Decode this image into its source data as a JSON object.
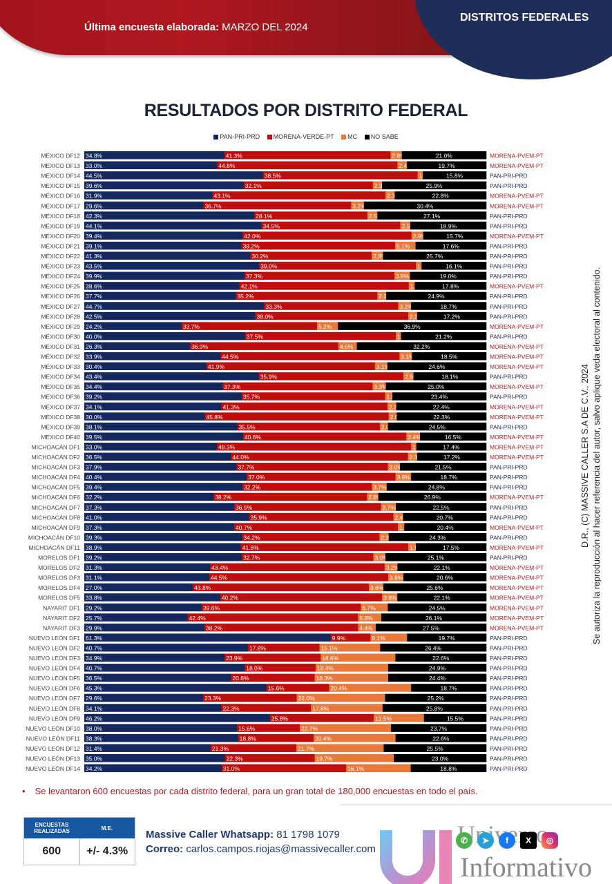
{
  "header": {
    "subtitle_label": "Última encuesta elaborada:",
    "subtitle_date": "MARZO  DEL 2024",
    "section_title": "DISTRITOS FEDERALES"
  },
  "colors": {
    "pan": "#14285e",
    "morena": "#c00d0d",
    "mc": "#e8793a",
    "nosabe": "#000000",
    "winner_pan": "#1c2a4f",
    "winner_morena": "#b01820"
  },
  "chart_data": {
    "type": "bar",
    "orientation": "horizontal-stacked-100",
    "title": "RESULTADOS POR DISTRITO FEDERAL",
    "legend": [
      "PAN-PRI-PRD",
      "MORENA-VERDE-PT",
      "MC",
      "NO SABE"
    ],
    "legend_position": "top",
    "series_keys": [
      "pan",
      "morena",
      "mc",
      "nosabe"
    ],
    "rows": [
      {
        "district": "MÉXICO DF12",
        "values": [
          34.8,
          41.3,
          2.8,
          21.0
        ],
        "winner": "MORENA-PVEM-PT"
      },
      {
        "district": "MÉXICO DF13",
        "values": [
          33.0,
          44.8,
          2.4,
          19.7
        ],
        "winner": "MORENA-PVEM-PT"
      },
      {
        "district": "MÉXICO DF14",
        "values": [
          44.5,
          38.5,
          1.3,
          15.8
        ],
        "winner": "PAN-PRI-PRD"
      },
      {
        "district": "MÉXICO DF15",
        "values": [
          39.6,
          32.1,
          2.3,
          25.9
        ],
        "winner": "PAN-PRI-PRD"
      },
      {
        "district": "MÉXICO DF16",
        "values": [
          31.9,
          43.1,
          2.3,
          22.8
        ],
        "winner": "MORENA-PVEM-PT"
      },
      {
        "district": "MÉXICO DF17",
        "values": [
          29.6,
          36.7,
          3.2,
          30.4
        ],
        "winner": "MORENA-PVEM-PT"
      },
      {
        "district": "MÉXICO DF18",
        "values": [
          42.3,
          28.1,
          2.5,
          27.1
        ],
        "winner": "PAN-PRI-PRD"
      },
      {
        "district": "MÉXICO DF19",
        "values": [
          44.1,
          34.5,
          2.5,
          18.9
        ],
        "winner": "PAN-PRI-PRD"
      },
      {
        "district": "MÉXICO DF20",
        "values": [
          39.4,
          42.0,
          2.9,
          15.7
        ],
        "winner": "MORENA-PVEM-PT"
      },
      {
        "district": "MÉXICO DF21",
        "values": [
          39.1,
          38.2,
          5.1,
          17.6
        ],
        "winner": "PAN-PRI-PRD"
      },
      {
        "district": "MÉXICO DF22",
        "values": [
          41.3,
          30.2,
          2.8,
          25.7
        ],
        "winner": "PAN-PRI-PRD"
      },
      {
        "district": "MÉXICO DF23",
        "values": [
          43.5,
          39.0,
          1.4,
          16.1
        ],
        "winner": "PAN-PRI-PRD"
      },
      {
        "district": "MÉXICO DF24",
        "values": [
          39.9,
          37.3,
          3.9,
          19.0
        ],
        "winner": "PAN-PRI-PRD"
      },
      {
        "district": "MÉXICO DF25",
        "values": [
          38.6,
          42.1,
          1.5,
          17.8
        ],
        "winner": "MORENA-PVEM-PT"
      },
      {
        "district": "MÉXICO DF26",
        "values": [
          37.7,
          35.2,
          2.2,
          24.9
        ],
        "winner": "PAN-PRI-PRD"
      },
      {
        "district": "MÉXICO DF27",
        "values": [
          44.7,
          33.3,
          3.2,
          18.7
        ],
        "winner": "PAN-PRI-PRD"
      },
      {
        "district": "MÉXICO DF28",
        "values": [
          42.5,
          38.0,
          2.2,
          17.2
        ],
        "winner": "PAN-PRI-PRD"
      },
      {
        "district": "MÉXICO DF29",
        "values": [
          24.2,
          33.7,
          5.2,
          36.9
        ],
        "winner": "MORENA-PVEM-PT"
      },
      {
        "district": "MÉXICO DF30",
        "values": [
          40.0,
          37.5,
          1.3,
          21.2
        ],
        "winner": "PAN-PRI-PRD"
      },
      {
        "district": "MÉXICO DF31",
        "values": [
          26.3,
          36.9,
          4.6,
          32.2
        ],
        "winner": "MORENA-PVEM-PT"
      },
      {
        "district": "MÉXICO DF32",
        "values": [
          33.9,
          44.5,
          3.1,
          18.5
        ],
        "winner": "MORENA-PVEM-PT"
      },
      {
        "district": "MÉXICO DF33",
        "values": [
          30.4,
          41.9,
          3.1,
          24.6
        ],
        "winner": "MORENA-PVEM-PT"
      },
      {
        "district": "MÉXICO DF34",
        "values": [
          43.4,
          35.9,
          2.5,
          18.1
        ],
        "winner": "PAN-PRI-PRD"
      },
      {
        "district": "MÉXICO DF35",
        "values": [
          34.4,
          37.3,
          3.3,
          25.0
        ],
        "winner": "MORENA-PVEM-PT"
      },
      {
        "district": "MÉXICO DF36",
        "values": [
          39.2,
          35.7,
          1.8,
          23.4
        ],
        "winner": "PAN-PRI-PRD"
      },
      {
        "district": "MÉXICO DF37",
        "values": [
          34.1,
          41.3,
          2.2,
          22.4
        ],
        "winner": "MORENA-PVEM-PT"
      },
      {
        "district": "MÉXICO DF38",
        "values": [
          30.0,
          45.8,
          2.0,
          22.3
        ],
        "winner": "MORENA-PVEM-PT"
      },
      {
        "district": "MÉXICO DF39",
        "values": [
          38.1,
          35.5,
          2.0,
          24.5
        ],
        "winner": "PAN-PRI-PRD"
      },
      {
        "district": "MÉXICO DF40",
        "values": [
          39.5,
          40.6,
          3.4,
          16.5
        ],
        "winner": "MORENA-PVEM-PT"
      },
      {
        "district": "MICHOACÁN DF1",
        "values": [
          33.0,
          48.3,
          1.3,
          17.4
        ],
        "winner": "MORENA-PVEM-PT"
      },
      {
        "district": "MICHOACÁN DF2",
        "values": [
          36.5,
          44.0,
          2.3,
          17.2
        ],
        "winner": "MORENA-PVEM-PT"
      },
      {
        "district": "MICHOACÁN DF3",
        "values": [
          37.9,
          37.7,
          3.0,
          21.5
        ],
        "winner": "PAN-PRI-PRD"
      },
      {
        "district": "MICHOACÁN DF4",
        "values": [
          40.4,
          37.0,
          3.9,
          18.7
        ],
        "winner": "PAN-PRI-PRD"
      },
      {
        "district": "MICHOACÁN DF5",
        "values": [
          39.4,
          32.2,
          3.7,
          24.8
        ],
        "winner": "PAN-PRI-PRD"
      },
      {
        "district": "MICHOACÁN DF6",
        "values": [
          32.2,
          38.2,
          2.8,
          26.9
        ],
        "winner": "MORENA-PVEM-PT"
      },
      {
        "district": "MICHOACÁN DF7",
        "values": [
          37.3,
          36.5,
          3.7,
          22.5
        ],
        "winner": "PAN-PRI-PRD"
      },
      {
        "district": "MICHOACÁN DF8",
        "values": [
          41.0,
          35.9,
          2.4,
          20.7
        ],
        "winner": "PAN-PRI-PRD"
      },
      {
        "district": "MICHOACÁN DF9",
        "values": [
          37.3,
          40.7,
          1.6,
          20.4
        ],
        "winner": "MORENA-PVEM-PT"
      },
      {
        "district": "MICHOACÁN DF10",
        "values": [
          39.3,
          34.2,
          2.3,
          24.3
        ],
        "winner": "PAN-PRI-PRD"
      },
      {
        "district": "MICHOACÁN DF11",
        "values": [
          38.9,
          41.6,
          1.9,
          17.5
        ],
        "winner": "MORENA-PVEM-PT"
      },
      {
        "district": "MORELOS DF1",
        "values": [
          39.2,
          32.7,
          3.0,
          25.1
        ],
        "winner": "PAN-PRI-PRD"
      },
      {
        "district": "MORELOS DF2",
        "values": [
          31.3,
          43.4,
          3.2,
          22.1
        ],
        "winner": "MORENA-PVEM-PT"
      },
      {
        "district": "MORELOS DF3",
        "values": [
          31.1,
          44.5,
          3.8,
          20.6
        ],
        "winner": "MORENA-PVEM-PT"
      },
      {
        "district": "MORELOS DF4",
        "values": [
          27.0,
          43.8,
          3.6,
          25.6
        ],
        "winner": "MORENA-PVEM-PT"
      },
      {
        "district": "MORELOS DF5",
        "values": [
          33.8,
          40.2,
          3.8,
          22.1
        ],
        "winner": "MORENA-PVEM-PT"
      },
      {
        "district": "NAYARIT DF1",
        "values": [
          29.2,
          39.6,
          6.7,
          24.5
        ],
        "winner": "MORENA-PVEM-PT"
      },
      {
        "district": "NAYARIT DF2",
        "values": [
          25.7,
          42.4,
          5.8,
          26.1
        ],
        "winner": "MORENA-PVEM-PT"
      },
      {
        "district": "NAYARIT DF3",
        "values": [
          29.9,
          38.2,
          4.4,
          27.5
        ],
        "winner": "MORENA-PVEM-PT"
      },
      {
        "district": "NUEVO LEÓN DF1",
        "values": [
          61.3,
          9.9,
          9.1,
          19.7
        ],
        "winner": "PAN-PRI-PRD"
      },
      {
        "district": "NUEVO LEÓN DF2",
        "values": [
          40.7,
          17.8,
          15.1,
          26.4
        ],
        "winner": "PAN-PRI-PRD"
      },
      {
        "district": "NUEVO LEÓN DF3",
        "values": [
          34.9,
          23.9,
          18.6,
          22.6
        ],
        "winner": "PAN-PRI-PRD"
      },
      {
        "district": "NUEVO LEÓN DF4",
        "values": [
          40.7,
          18.0,
          18.4,
          24.9
        ],
        "winner": "PAN-PRI-PRD"
      },
      {
        "district": "NUEVO LEÓN DF5",
        "values": [
          36.5,
          20.8,
          18.3,
          24.4
        ],
        "winner": "PAN-PRI-PRD"
      },
      {
        "district": "NUEVO LEÓN DF6",
        "values": [
          45.3,
          15.6,
          20.4,
          18.7
        ],
        "winner": "PAN-PRI-PRD"
      },
      {
        "district": "NUEVO LEÓN DF7",
        "values": [
          29.6,
          23.3,
          22.0,
          25.2
        ],
        "winner": "PAN-PRI-PRD"
      },
      {
        "district": "NUEVO LEÓN DF8",
        "values": [
          34.1,
          22.3,
          17.8,
          25.8
        ],
        "winner": "PAN-PRI-PRD"
      },
      {
        "district": "NUEVO LEÓN DF9",
        "values": [
          46.2,
          25.8,
          12.5,
          15.5
        ],
        "winner": "PAN-PRI-PRD"
      },
      {
        "district": "NUEVO LEÓN DF10",
        "values": [
          38.0,
          15.6,
          22.7,
          23.7
        ],
        "winner": "PAN-PRI-PRD"
      },
      {
        "district": "NUEVO LEÓN DF11",
        "values": [
          38.3,
          18.8,
          20.4,
          22.6
        ],
        "winner": "PAN-PRI-PRD"
      },
      {
        "district": "NUEVO LEÓN DF12",
        "values": [
          31.4,
          21.3,
          21.7,
          25.5
        ],
        "winner": "PAN-PRI-PRD"
      },
      {
        "district": "NUEVO LEÓN DF13",
        "values": [
          35.0,
          22.3,
          19.7,
          23.0
        ],
        "winner": "PAN-PRI-PRD"
      },
      {
        "district": "NUEVO LEÓN DF14",
        "values": [
          34.2,
          31.0,
          16.1,
          18.8
        ],
        "winner": "PAN-PRI-PRD"
      }
    ]
  },
  "footer": {
    "bullet": "•",
    "note": "Se levantaron 600 encuestas por cada distrito federal, para un gran total de 180,000 encuestas en todo el país.",
    "survey_box": {
      "col1_header": "ENCUESTAS REALIZADAS",
      "col2_header": "M.E.",
      "col1_value": "600",
      "col2_value": "+/- 4.3%"
    },
    "contact": {
      "whatsapp_label": "Massive Caller Whatsapp:",
      "whatsapp_value": "81 1798 1079",
      "email_label": "Correo:",
      "email_value": "carlos.campos.riojas@massivecaller.com"
    },
    "watermark": {
      "line1": "Universo",
      "line2": "Informativo"
    },
    "social_icons": [
      "whatsapp-icon",
      "telegram-icon",
      "facebook-icon",
      "x-icon",
      "instagram-icon"
    ]
  },
  "side_text": {
    "line1": "D.R., (C) MASSIVE CALLER S.A DE C.V., 2024",
    "line2": "Se autoriza la reproducción al hacer referencia del autor, salvo aplique veda electoral al contenido."
  }
}
